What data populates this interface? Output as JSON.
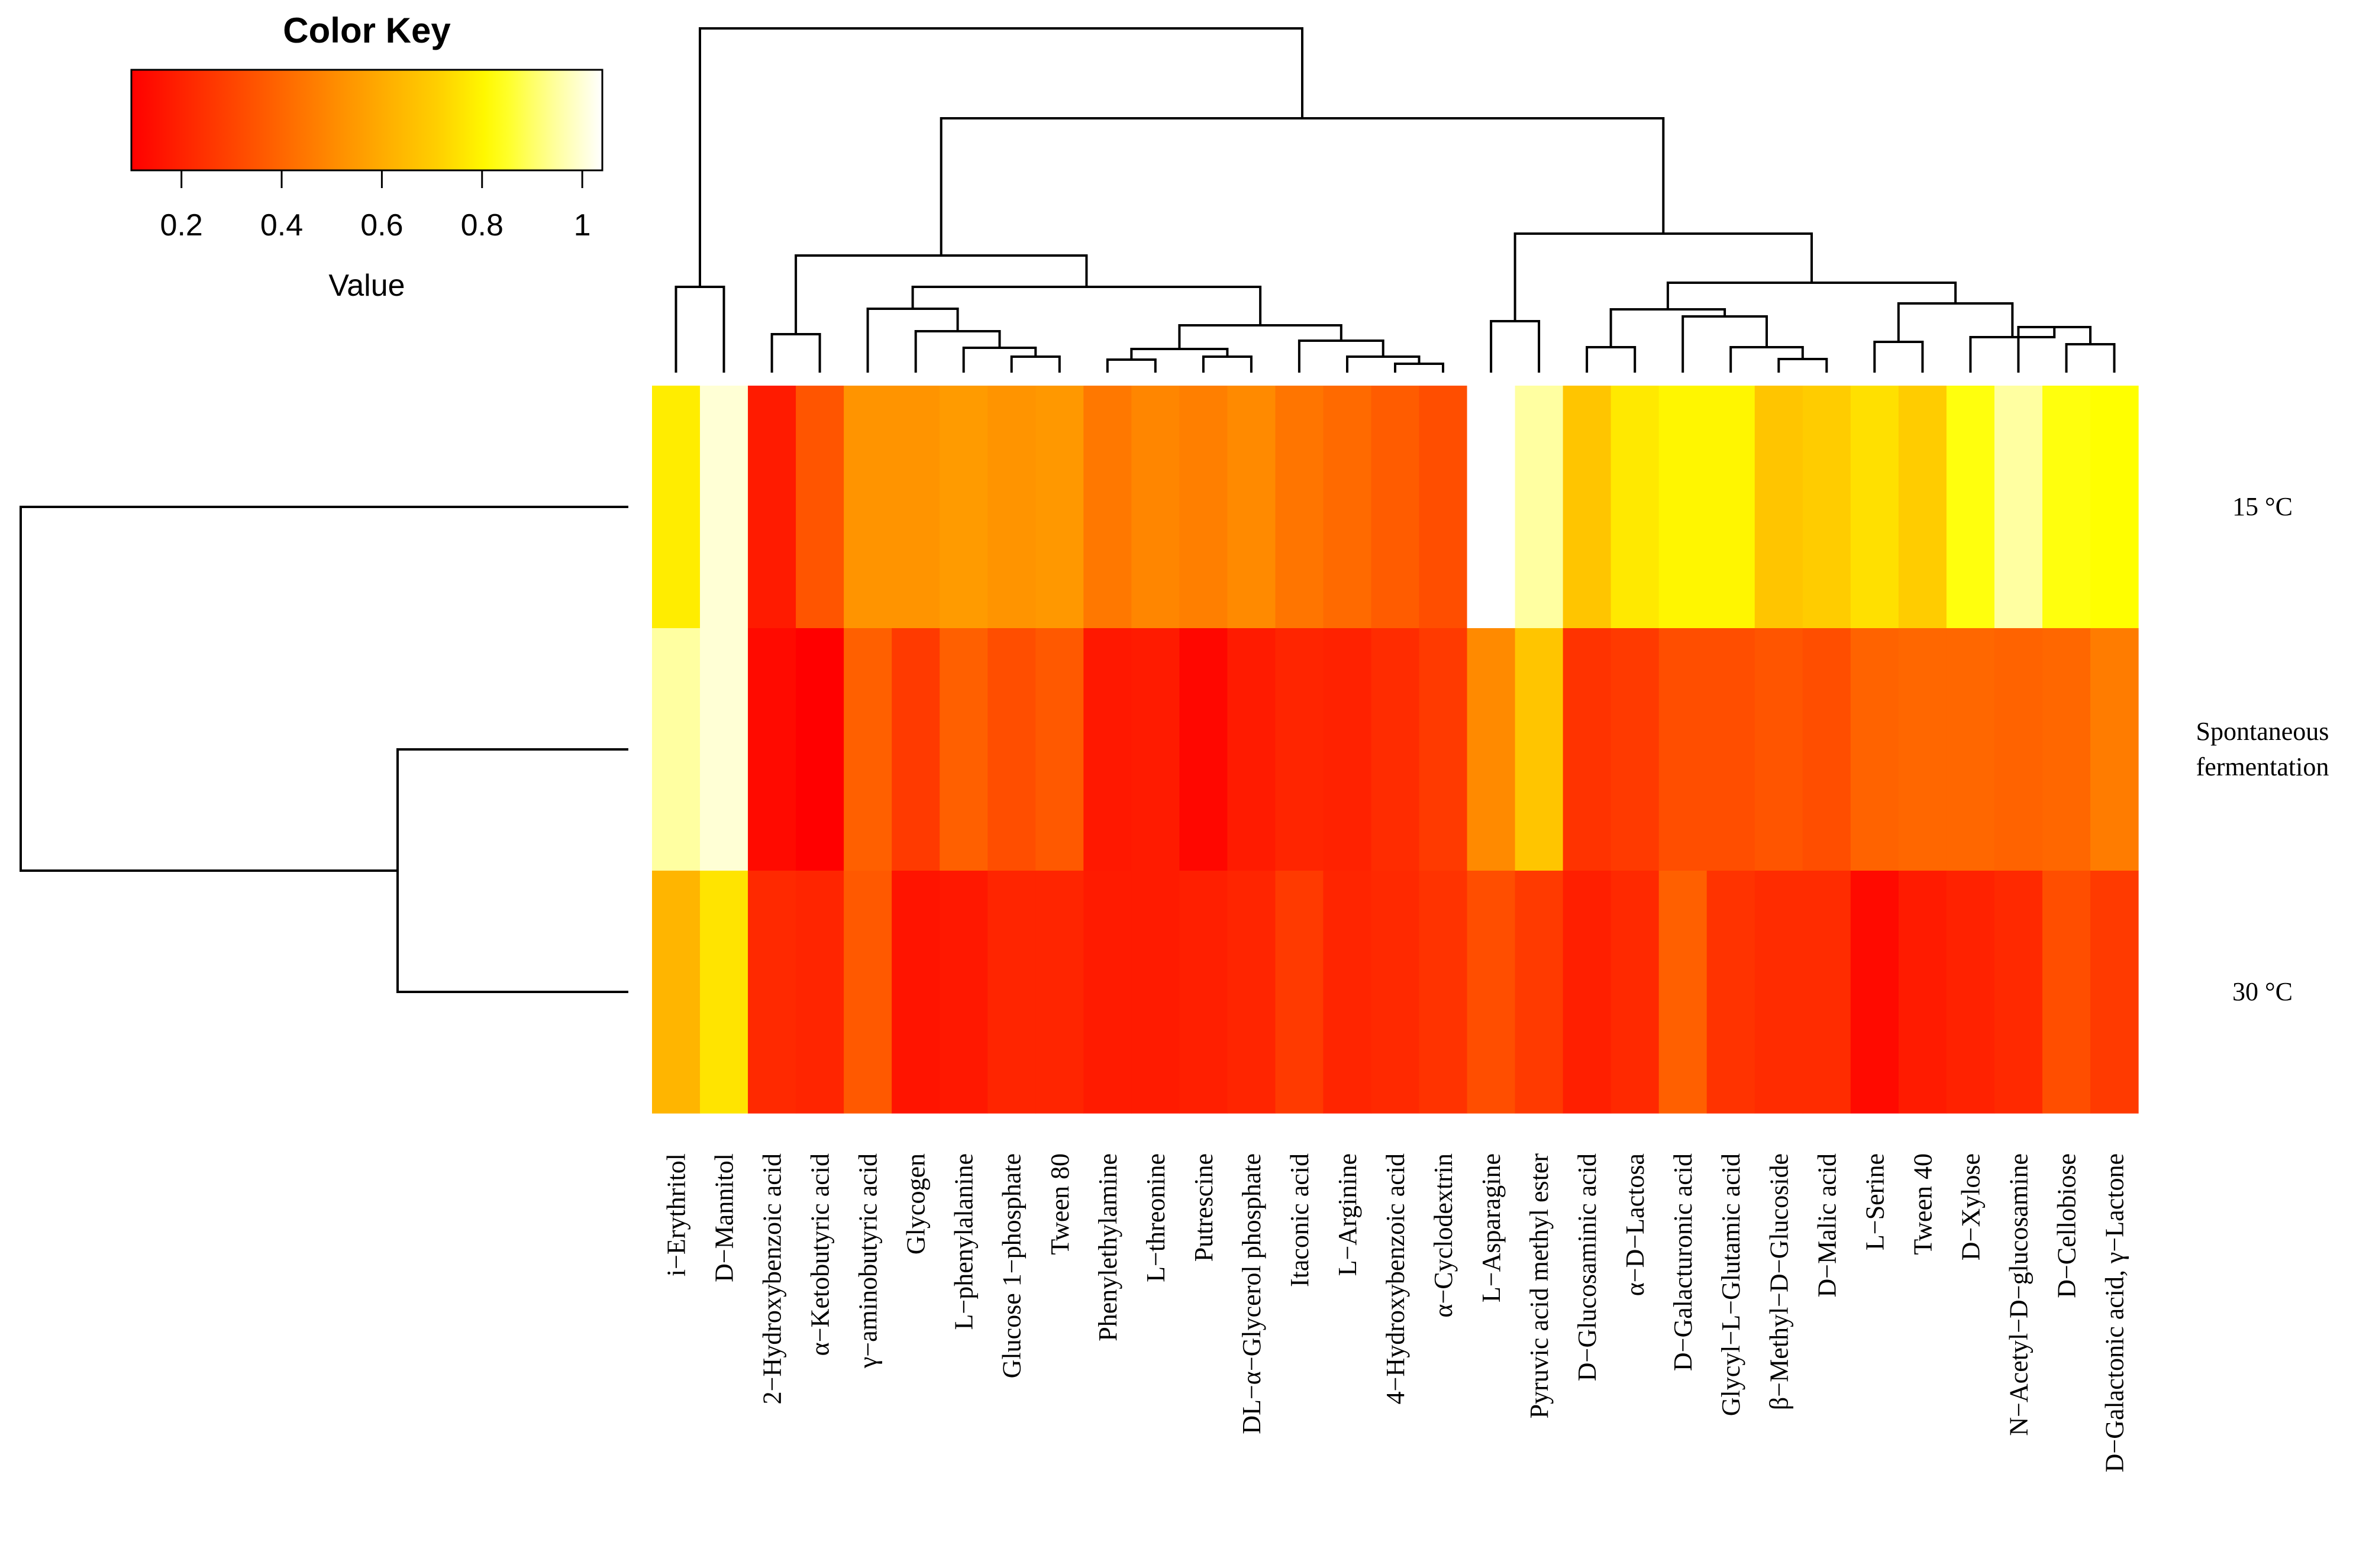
{
  "chart_data": {
    "type": "heatmap",
    "color_key": {
      "title": "Color Key",
      "xlabel": "Value",
      "range": [
        0.1,
        1.04
      ],
      "ticks": [
        0.2,
        0.4,
        0.6,
        0.8,
        1
      ],
      "tick_labels": [
        "0.2",
        "0.4",
        "0.6",
        "0.8",
        "1"
      ],
      "colormap": "heat (red → orange → yellow → white)"
    },
    "rows": [
      "15 °C",
      "Spontaneous fermentation",
      "30 °C"
    ],
    "columns": [
      "i−Erythritol",
      "D−Mannitol",
      "2−Hydroxybenzoic acid",
      "α−Ketobutyric acid",
      "γ−aminobutyric acid",
      "Glycogen",
      "L−phenylalanine",
      "Glucose 1−phosphate",
      "Tween 80",
      "Phenylethylamine",
      "L−threonine",
      "Putrescine",
      "DL−α−Glycerol phosphate",
      "Itaconic acid",
      "L−Arginine",
      "4−Hydroxybenzoic acid",
      "α−Cyclodextrin",
      "L−Asparagine",
      "Pyruvic acid methyl ester",
      "D−Glucosaminic acid",
      "α−D−Lactosa",
      "D−Galacturonic acid",
      "Glycyl−L−Glutamic acid",
      "β−Methyl−D−Glucoside",
      "D−Malic acid",
      "L−Serine",
      "Tween 40",
      "D−Xylose",
      "N−Acetyl−D−glucosamine",
      "D−Cellobiose",
      "D−Galactonic acid, γ−Lactone"
    ],
    "values": [
      [
        0.78,
        1.0,
        0.18,
        0.35,
        0.53,
        0.53,
        0.55,
        0.53,
        0.54,
        0.45,
        0.49,
        0.47,
        0.5,
        0.44,
        0.41,
        0.37,
        0.33,
        1.04,
        0.95,
        0.68,
        0.77,
        0.8,
        0.8,
        0.68,
        0.7,
        0.75,
        0.7,
        0.83,
        0.95,
        0.83,
        0.82
      ],
      [
        0.95,
        1.0,
        0.13,
        0.1,
        0.38,
        0.27,
        0.38,
        0.33,
        0.36,
        0.17,
        0.18,
        0.12,
        0.18,
        0.21,
        0.2,
        0.23,
        0.27,
        0.5,
        0.68,
        0.25,
        0.27,
        0.33,
        0.33,
        0.35,
        0.33,
        0.39,
        0.4,
        0.4,
        0.39,
        0.4,
        0.46
      ],
      [
        0.63,
        0.76,
        0.22,
        0.21,
        0.36,
        0.16,
        0.17,
        0.21,
        0.21,
        0.18,
        0.18,
        0.19,
        0.21,
        0.27,
        0.21,
        0.22,
        0.25,
        0.33,
        0.27,
        0.19,
        0.22,
        0.38,
        0.25,
        0.23,
        0.23,
        0.13,
        0.18,
        0.2,
        0.22,
        0.33,
        0.27
      ]
    ],
    "column_dendrogram": true,
    "row_dendrogram": true
  }
}
